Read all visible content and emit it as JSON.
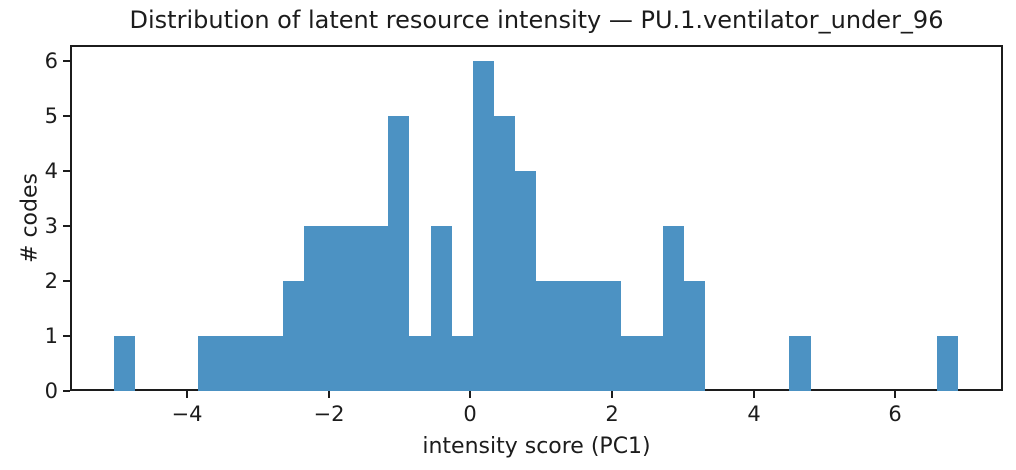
{
  "chart_data": {
    "type": "bar",
    "subtype": "histogram",
    "title": "Distribution of latent resource intensity — PU.1.ventilator_under_96",
    "xlabel": "intensity score (PC1)",
    "ylabel": "# codes",
    "bar_color": "#4c92c3",
    "axis_color": "#1c1c1c",
    "bin_start": -5.03,
    "bin_width": 0.298,
    "counts": [
      1,
      0,
      0,
      0,
      1,
      1,
      1,
      1,
      2,
      3,
      3,
      3,
      3,
      5,
      1,
      3,
      1,
      6,
      5,
      4,
      2,
      2,
      2,
      2,
      1,
      1,
      3,
      2,
      0,
      0,
      0,
      0,
      1,
      0,
      0,
      0,
      0,
      0,
      0,
      1
    ],
    "xlim": [
      -5.65,
      7.52
    ],
    "ylim": [
      0,
      6.3
    ],
    "xticks": [
      {
        "value": -4,
        "label": "−4"
      },
      {
        "value": -2,
        "label": "−2"
      },
      {
        "value": 0,
        "label": "0"
      },
      {
        "value": 2,
        "label": "2"
      },
      {
        "value": 4,
        "label": "4"
      },
      {
        "value": 6,
        "label": "6"
      }
    ],
    "yticks": [
      {
        "value": 0,
        "label": "0"
      },
      {
        "value": 1,
        "label": "1"
      },
      {
        "value": 2,
        "label": "2"
      },
      {
        "value": 3,
        "label": "3"
      },
      {
        "value": 4,
        "label": "4"
      },
      {
        "value": 5,
        "label": "5"
      },
      {
        "value": 6,
        "label": "6"
      }
    ],
    "grid": false,
    "legend": null
  }
}
